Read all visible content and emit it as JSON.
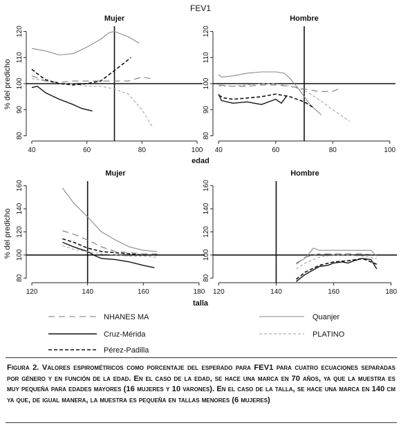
{
  "figure": {
    "title": "FEV1",
    "xlabel_top": "edad",
    "xlabel_bottom": "talla",
    "ylabel": "% del predicho"
  },
  "legend": {
    "items": [
      {
        "key": "nhanes",
        "label": "NHANES MA"
      },
      {
        "key": "quanjer",
        "label": "Quanjer"
      },
      {
        "key": "cruz",
        "label": "Cruz-Mérida"
      },
      {
        "key": "platino",
        "label": "PLATINO"
      },
      {
        "key": "perez",
        "label": "Pérez-Padilla"
      }
    ]
  },
  "caption": {
    "text": "Figura 2. Valores espirométricos como porcentaje del esperado para FEV1 para cuatro ecuaciones separadas por género y en función de la edad. En el caso de la edad, se hace una marca en 70 años, ya que la muestra es muy pequeña para edades mayores (16 mujeres y 10 varones). En el caso de la talla, se hace una marca en 140 cm ya que, de igual manera, la muestra es pequeña en tallas menores (6 mujeres)"
  },
  "styles": {
    "nhanes": {
      "color": "#777777",
      "width": 1.1,
      "dash": "9,6"
    },
    "quanjer": {
      "color": "#8a8a8a",
      "width": 1.1,
      "dash": ""
    },
    "cruz": {
      "color": "#111111",
      "width": 1.4,
      "dash": ""
    },
    "platino": {
      "color": "#999999",
      "width": 1.0,
      "dash": "4,3"
    },
    "perez": {
      "color": "#111111",
      "width": 1.6,
      "dash": "5,3"
    }
  },
  "chart_data": [
    {
      "type": "line",
      "title": "Mujer",
      "xlabel": "",
      "ylabel": "% del predicho",
      "xlim": [
        38,
        102
      ],
      "ylim": [
        78,
        122
      ],
      "xticks": [
        40,
        60,
        80,
        100
      ],
      "yticks": [
        80,
        90,
        100,
        110,
        120
      ],
      "reference_lines": {
        "x": 70,
        "y": 100
      },
      "series": [
        {
          "key": "quanjer",
          "name": "Quanjer",
          "x": [
            40,
            45,
            50,
            55,
            60,
            65,
            68,
            70,
            75,
            79
          ],
          "y": [
            113.5,
            112.5,
            111,
            111.5,
            114,
            117,
            119.5,
            120,
            118,
            115.5
          ]
        },
        {
          "key": "nhanes",
          "name": "NHANES MA",
          "x": [
            40,
            45,
            50,
            55,
            60,
            65,
            70,
            75,
            80,
            83
          ],
          "y": [
            103,
            101,
            100.5,
            101,
            101,
            101,
            101,
            101,
            102.5,
            102
          ]
        },
        {
          "key": "cruz",
          "name": "Cruz-Mérida",
          "x": [
            40,
            42,
            45,
            50,
            55,
            58,
            62
          ],
          "y": [
            98.5,
            99,
            96.5,
            94,
            92,
            90.5,
            89.5
          ]
        },
        {
          "key": "platino",
          "name": "PLATINO",
          "x": [
            40,
            45,
            50,
            55,
            60,
            65,
            70,
            75,
            80,
            84
          ],
          "y": [
            102,
            101,
            100,
            100,
            99,
            99,
            98,
            96,
            90,
            83
          ]
        },
        {
          "key": "perez",
          "name": "Pérez-Padilla",
          "x": [
            40,
            43,
            45,
            50,
            55,
            60,
            65,
            70,
            73,
            76
          ],
          "y": [
            105.5,
            103,
            101.5,
            100,
            99.5,
            100,
            101,
            105,
            107.5,
            110
          ]
        }
      ]
    },
    {
      "type": "line",
      "title": "Hombre",
      "xlabel": "",
      "ylabel": "",
      "xlim": [
        38,
        102
      ],
      "ylim": [
        78,
        122
      ],
      "xticks": [
        40,
        60,
        80,
        100
      ],
      "yticks": [
        80,
        90,
        100,
        110,
        120
      ],
      "reference_lines": {
        "x": 70,
        "y": 100
      },
      "series": [
        {
          "key": "quanjer",
          "name": "Quanjer",
          "x": [
            40,
            41,
            45,
            50,
            55,
            60,
            63,
            65,
            68,
            72,
            76
          ],
          "y": [
            103.5,
            102.5,
            103,
            104,
            104.5,
            104.5,
            104,
            102,
            98,
            92,
            88
          ]
        },
        {
          "key": "nhanes",
          "name": "NHANES MA",
          "x": [
            40,
            45,
            50,
            55,
            60,
            65,
            70,
            75,
            80,
            82
          ],
          "y": [
            99.5,
            99,
            99,
            99.5,
            99.5,
            99,
            98,
            97,
            97,
            98
          ]
        },
        {
          "key": "cruz",
          "name": "Cruz-Mérida",
          "x": [
            40,
            41,
            45,
            50,
            55,
            60,
            62,
            64
          ],
          "y": [
            96,
            93.5,
            92.5,
            93,
            92,
            94,
            92.5,
            95.5
          ]
        },
        {
          "key": "platino",
          "name": "PLATINO",
          "x": [
            40,
            45,
            50,
            55,
            60,
            65,
            70,
            75,
            80,
            86
          ],
          "y": [
            99,
            99,
            99.5,
            100,
            100,
            99,
            97.5,
            94,
            90,
            85.5
          ]
        },
        {
          "key": "perez",
          "name": "Pérez-Padilla",
          "x": [
            40,
            42,
            45,
            50,
            55,
            60,
            65,
            70,
            73
          ],
          "y": [
            95.5,
            94.5,
            94,
            94.5,
            95,
            96,
            95,
            93,
            91
          ]
        }
      ]
    },
    {
      "type": "line",
      "title": "Mujer",
      "xlabel": "talla",
      "ylabel": "% del predicho",
      "xlim": [
        118,
        182
      ],
      "ylim": [
        76,
        164
      ],
      "xticks": [
        120,
        140,
        160,
        180
      ],
      "yticks": [
        80,
        100,
        120,
        140,
        160
      ],
      "reference_lines": {
        "x": 140,
        "y": 100
      },
      "series": [
        {
          "key": "quanjer",
          "name": "Quanjer",
          "x": [
            131,
            135,
            140,
            145,
            150,
            155,
            160,
            165
          ],
          "y": [
            158,
            145,
            133,
            120,
            113,
            107,
            104,
            103
          ]
        },
        {
          "key": "nhanes",
          "name": "NHANES MA",
          "x": [
            131,
            135,
            140,
            145,
            150,
            155,
            160,
            165
          ],
          "y": [
            121,
            118,
            113,
            107,
            103,
            102,
            101,
            101
          ]
        },
        {
          "key": "cruz",
          "name": "Cruz-Mérida",
          "x": [
            131,
            135,
            140,
            143,
            145,
            150,
            155,
            160,
            164
          ],
          "y": [
            111,
            107,
            103,
            99,
            97,
            96,
            94,
            91,
            89
          ]
        },
        {
          "key": "platino",
          "name": "PLATINO",
          "x": [
            131,
            135,
            140,
            145,
            150,
            155,
            160,
            165
          ],
          "y": [
            108,
            105,
            103,
            101,
            100,
            99,
            99,
            98
          ]
        },
        {
          "key": "perez",
          "name": "Pérez-Padilla",
          "x": [
            131,
            135,
            140,
            145,
            150,
            155,
            160,
            165
          ],
          "y": [
            114,
            111,
            106,
            103,
            102,
            101,
            100,
            100
          ]
        }
      ]
    },
    {
      "type": "line",
      "title": "Hombre",
      "xlabel": "",
      "ylabel": "",
      "xlim": [
        118,
        182
      ],
      "ylim": [
        76,
        164
      ],
      "xticks": [
        120,
        140,
        160,
        180
      ],
      "yticks": [
        80,
        100,
        120,
        140,
        160
      ],
      "reference_lines": {
        "x": 140,
        "y": 100
      },
      "series": [
        {
          "key": "quanjer",
          "name": "Quanjer",
          "x": [
            147,
            150,
            153,
            155,
            160,
            165,
            170,
            173,
            175
          ],
          "y": [
            93,
            97,
            106,
            104,
            104,
            104,
            104,
            104,
            99
          ]
        },
        {
          "key": "nhanes",
          "name": "NHANES MA",
          "x": [
            147,
            150,
            155,
            160,
            165,
            170,
            175
          ],
          "y": [
            92,
            98,
            101,
            101,
            101,
            101,
            100
          ]
        },
        {
          "key": "cruz",
          "name": "Cruz-Mérida",
          "x": [
            147,
            150,
            155,
            158,
            160,
            163,
            165,
            167,
            170,
            173,
            175
          ],
          "y": [
            77,
            83,
            90,
            91,
            93,
            94,
            93,
            95,
            97,
            96,
            88
          ]
        },
        {
          "key": "platino",
          "name": "PLATINO",
          "x": [
            147,
            150,
            155,
            160,
            165,
            170,
            175
          ],
          "y": [
            88,
            93,
            98,
            100,
            100,
            99,
            97
          ]
        },
        {
          "key": "perez",
          "name": "Pérez-Padilla",
          "x": [
            147,
            150,
            155,
            160,
            165,
            170,
            175
          ],
          "y": [
            79,
            85,
            91,
            94,
            95,
            97,
            92
          ]
        }
      ]
    }
  ]
}
